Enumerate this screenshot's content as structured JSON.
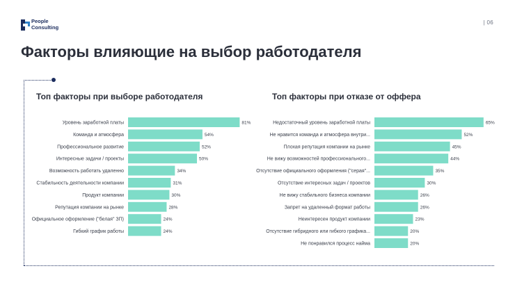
{
  "brand": {
    "line1": "People",
    "line2": "Consulting",
    "primary_color": "#1c2d5e",
    "accent_color": "#2f80c9"
  },
  "page_number": "| 06",
  "title": "Факторы влияющие на выбор работодателя",
  "chart_data": [
    {
      "type": "bar",
      "orientation": "horizontal",
      "title": "Топ факторы при выборе работодателя",
      "categories": [
        "Уровень заработной платы",
        "Команда и атмосфера",
        "Профессиональное развитие",
        "Интересные задачи / проекты",
        "Возможность работать удаленно",
        "Стабильность деятельности компании",
        "Продукт компании",
        "Репутация компании на рынке",
        "Официальное оформление (\"белая\" ЗП)",
        "Гибкий график работы"
      ],
      "values": [
        81,
        54,
        52,
        50,
        34,
        31,
        30,
        28,
        24,
        24
      ],
      "value_labels": [
        "81%",
        "54%",
        "52%",
        "50%",
        "34%",
        "31%",
        "30%",
        "28%",
        "24%",
        "24%"
      ],
      "unit": "%",
      "xlim": [
        0,
        100
      ],
      "color": "#7edcc8"
    },
    {
      "type": "bar",
      "orientation": "horizontal",
      "title": "Топ факторы при отказе от оффера",
      "categories": [
        "Недостаточный уровень заработной платы",
        "Не нравится команда и атмосфера внутри...",
        "Плохая репутация компании на рынке",
        "Не вижу возможностей профессионального...",
        "Отсутствие официального оформления (\"серая\"...",
        "Отсутствие интересных задач / проектов",
        "Не вижу стабильного бизнеса компании",
        "Запрет на удаленный формат работы",
        "Неинтересен продукт компании",
        "Отсутствие гибридного или гибкого графика...",
        "Не понравился процесс найма"
      ],
      "values": [
        65,
        52,
        45,
        44,
        35,
        30,
        26,
        26,
        23,
        20,
        20
      ],
      "value_labels": [
        "65%",
        "52%",
        "45%",
        "44%",
        "35%",
        "30%",
        "26%",
        "26%",
        "23%",
        "20%",
        "20%"
      ],
      "unit": "%",
      "xlim": [
        0,
        80
      ],
      "color": "#7edcc8"
    }
  ]
}
